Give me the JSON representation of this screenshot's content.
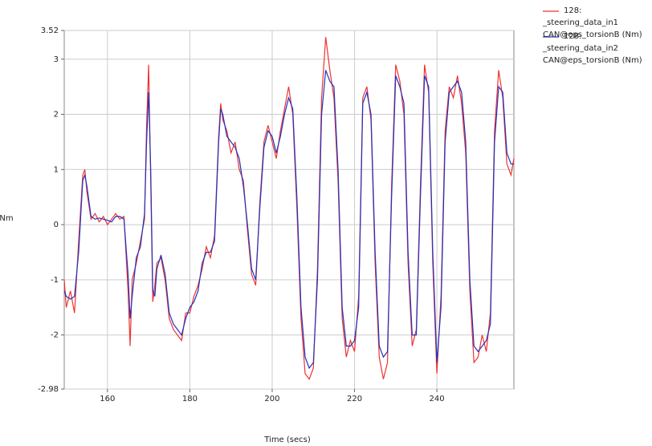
{
  "chart_data": {
    "type": "line",
    "x_label": "Time (secs)",
    "y_label": "Nm",
    "xlim": [
      149.5,
      258.7
    ],
    "xticks": [
      160,
      180,
      200,
      220,
      240
    ],
    "ylim": [
      -2.98,
      3.52
    ],
    "yticks": [
      -2.98,
      -2,
      -1,
      0,
      1,
      2,
      3,
      3.52
    ],
    "grid": true,
    "x": [
      149.5,
      150,
      151,
      152,
      153,
      154,
      154.5,
      155,
      156,
      157,
      158,
      159,
      160,
      161,
      162,
      163,
      164,
      165,
      165.5,
      166,
      167,
      168,
      169,
      169.5,
      170,
      170.5,
      171,
      171.5,
      172,
      173,
      174,
      175,
      176,
      177,
      178,
      179,
      180,
      181,
      182,
      183,
      184,
      185,
      186,
      187,
      187.5,
      188,
      189,
      190,
      191,
      192,
      193,
      194,
      195,
      196,
      197,
      198,
      199,
      200,
      201,
      202,
      203,
      204,
      205,
      206,
      207,
      208,
      209,
      210,
      211,
      212,
      213,
      214,
      215,
      216,
      217,
      218,
      219,
      220,
      221,
      222,
      223,
      224,
      225,
      226,
      227,
      228,
      229,
      230,
      231,
      232,
      233,
      234,
      235,
      236,
      237,
      238,
      239,
      240,
      241,
      242,
      243,
      244,
      245,
      246,
      247,
      248,
      249,
      250,
      251,
      252,
      253,
      254,
      255,
      256,
      257,
      258,
      258.7
    ],
    "series": [
      {
        "name": "128: _steering_data_in1\nCAN@eps_torsionB (Nm)",
        "color": "#ee3333",
        "values": [
          -1.0,
          -1.5,
          -1.2,
          -1.6,
          -0.3,
          0.9,
          1.0,
          0.6,
          0.1,
          0.2,
          0.05,
          0.15,
          0.0,
          0.1,
          0.2,
          0.1,
          0.15,
          -1.2,
          -2.2,
          -1.0,
          -0.7,
          -0.3,
          0.1,
          1.8,
          2.9,
          0.8,
          -1.4,
          -1.1,
          -0.7,
          -0.6,
          -1.0,
          -1.7,
          -1.9,
          -2.0,
          -2.1,
          -1.6,
          -1.6,
          -1.3,
          -1.1,
          -0.8,
          -0.4,
          -0.6,
          -0.2,
          1.6,
          2.2,
          1.9,
          1.7,
          1.3,
          1.5,
          1.0,
          0.8,
          -0.1,
          -0.9,
          -1.1,
          0.4,
          1.5,
          1.8,
          1.5,
          1.2,
          1.7,
          2.1,
          2.5,
          2.0,
          0.3,
          -1.7,
          -2.7,
          -2.8,
          -2.6,
          -0.8,
          2.3,
          3.4,
          2.8,
          2.3,
          0.8,
          -1.7,
          -2.4,
          -2.1,
          -2.3,
          -1.3,
          2.3,
          2.5,
          1.9,
          -0.7,
          -2.4,
          -2.8,
          -2.5,
          0.7,
          2.9,
          2.6,
          2.0,
          -0.7,
          -2.2,
          -1.9,
          0.7,
          2.9,
          2.4,
          -0.7,
          -2.7,
          -1.3,
          1.7,
          2.5,
          2.3,
          2.7,
          2.2,
          1.3,
          -1.2,
          -2.5,
          -2.4,
          -2.0,
          -2.3,
          -1.6,
          1.7,
          2.8,
          2.3,
          1.1,
          0.9,
          1.2
        ]
      },
      {
        "name": "128: _steering_data_in2\nCAN@eps_torsionB (Nm)",
        "color": "#2233bb",
        "values": [
          -1.2,
          -1.3,
          -1.35,
          -1.3,
          -0.5,
          0.8,
          0.9,
          0.7,
          0.15,
          0.1,
          0.12,
          0.1,
          0.08,
          0.05,
          0.15,
          0.15,
          0.1,
          -0.9,
          -1.7,
          -1.3,
          -0.6,
          -0.4,
          0.2,
          1.5,
          2.4,
          1.0,
          -1.2,
          -1.3,
          -0.8,
          -0.55,
          -0.9,
          -1.6,
          -1.8,
          -1.9,
          -2.0,
          -1.7,
          -1.5,
          -1.4,
          -1.2,
          -0.7,
          -0.5,
          -0.5,
          -0.3,
          1.5,
          2.1,
          2.0,
          1.6,
          1.5,
          1.4,
          1.2,
          0.7,
          0.0,
          -0.8,
          -1.0,
          0.3,
          1.4,
          1.7,
          1.6,
          1.3,
          1.6,
          2.0,
          2.3,
          2.1,
          0.5,
          -1.5,
          -2.4,
          -2.6,
          -2.5,
          -1.0,
          2.0,
          2.8,
          2.6,
          2.5,
          1.0,
          -1.5,
          -2.2,
          -2.2,
          -2.1,
          -1.5,
          2.2,
          2.4,
          2.0,
          -0.5,
          -2.2,
          -2.4,
          -2.3,
          0.5,
          2.7,
          2.5,
          2.2,
          -0.5,
          -2.0,
          -2.0,
          0.5,
          2.7,
          2.5,
          -0.5,
          -2.5,
          -1.5,
          1.5,
          2.4,
          2.5,
          2.6,
          2.4,
          1.5,
          -1.0,
          -2.2,
          -2.3,
          -2.2,
          -2.1,
          -1.8,
          1.5,
          2.5,
          2.4,
          1.3,
          1.1,
          1.1
        ]
      }
    ]
  }
}
